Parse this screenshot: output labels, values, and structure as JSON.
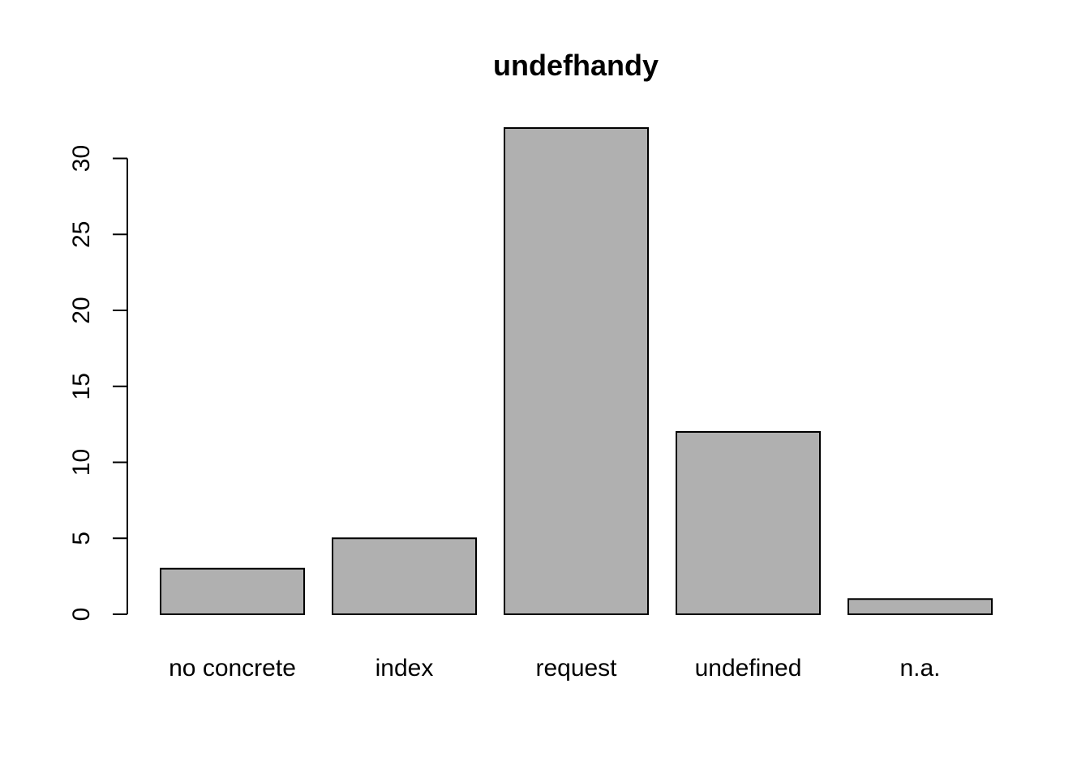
{
  "chart_data": {
    "type": "bar",
    "title": "undefhandy",
    "xlabel": "",
    "ylabel": "",
    "categories": [
      "no concrete",
      "index",
      "request",
      "undefined",
      "n.a."
    ],
    "values": [
      3,
      5,
      32,
      12,
      1
    ],
    "ylim": [
      0,
      32
    ],
    "yticks": [
      0,
      5,
      10,
      15,
      20,
      25,
      30
    ],
    "ytick_labels": [
      "0",
      "5",
      "10",
      "15",
      "20",
      "25",
      "30"
    ],
    "grid": false,
    "legend": "none",
    "colors": {
      "bar_fill": "#b0b0b0",
      "bar_stroke": "#000000",
      "axis": "#000000",
      "background": "#ffffff"
    }
  }
}
